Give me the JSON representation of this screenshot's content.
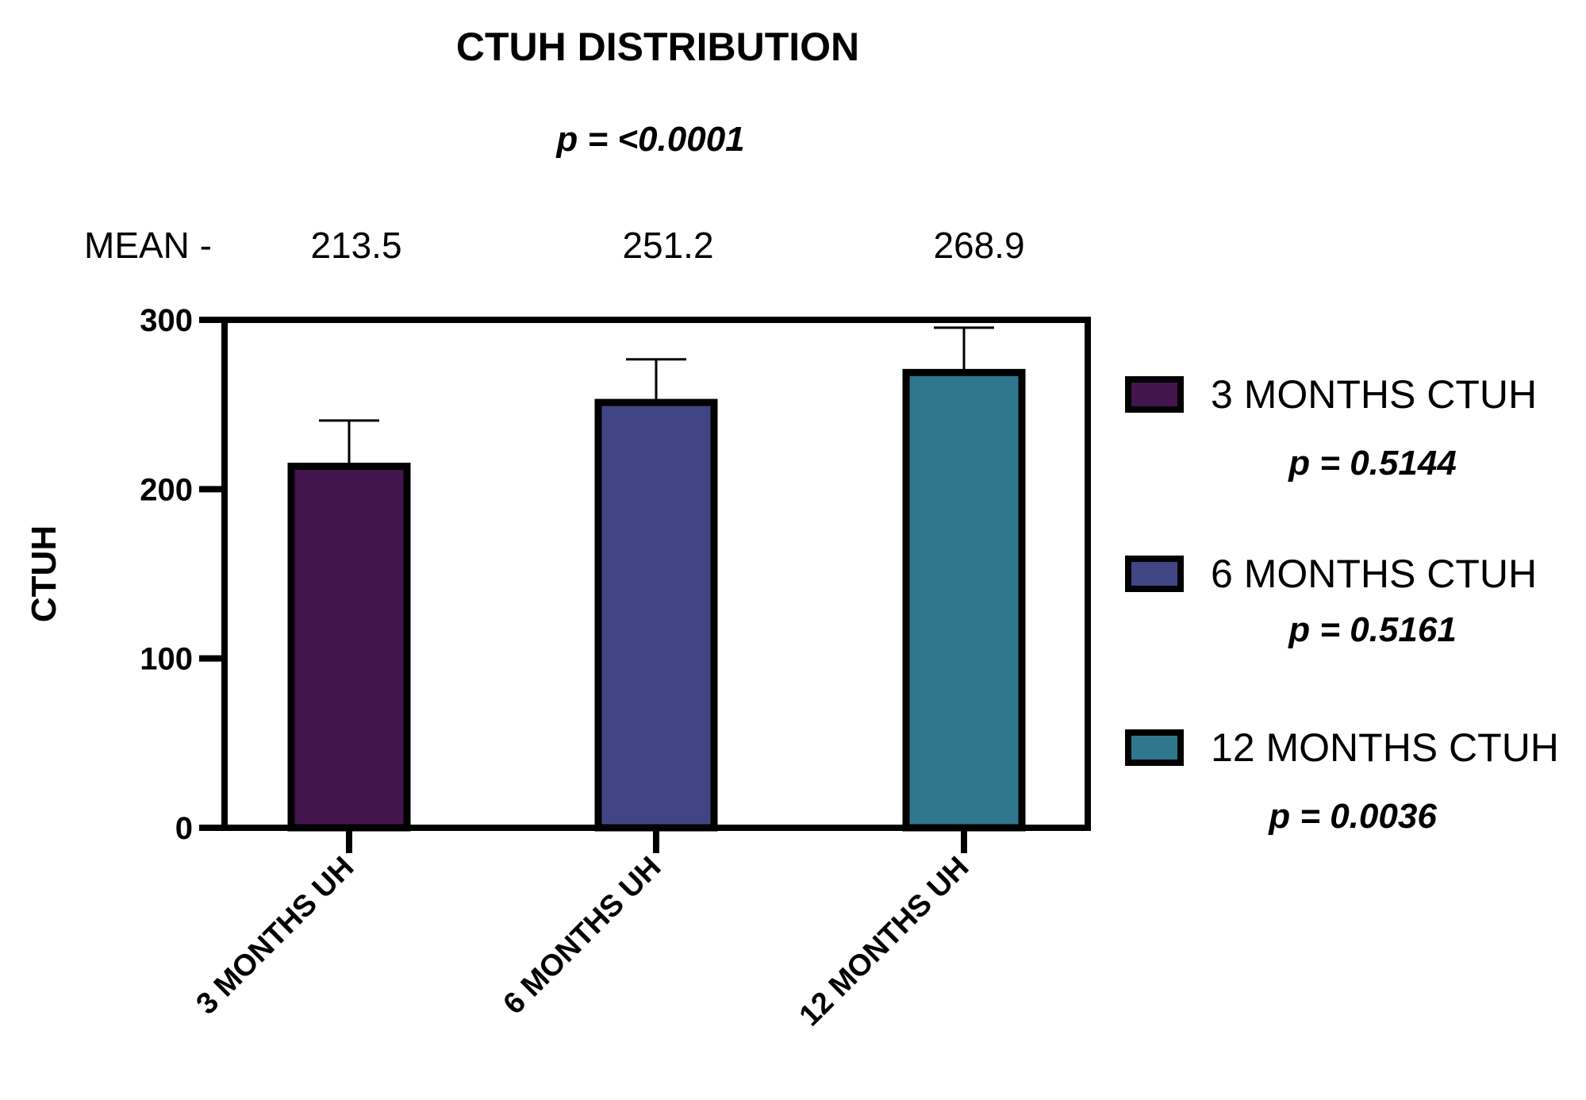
{
  "chart_data": {
    "type": "bar",
    "title": "CTUH DISTRIBUTION",
    "subtitle": "p = <0.0001",
    "mean_prefix": "MEAN -",
    "mean_labels": [
      "213.5",
      "251.2",
      "268.9"
    ],
    "categories": [
      "3 MONTHS UH",
      "6 MONTHS UH",
      "12 MONTHS UH"
    ],
    "values": [
      213.5,
      251.2,
      268.9
    ],
    "error_upper": [
      27,
      25.5,
      26.5
    ],
    "ylabel": "CTUH",
    "xlabel": "",
    "ylim": [
      0,
      300
    ],
    "yticks": [
      "0",
      "100",
      "200",
      "300"
    ],
    "grid": false,
    "legend_placement": "right",
    "legend": [
      {
        "label": "3 MONTHS CTUH",
        "p": "p = 0.5144",
        "color": "#43154d"
      },
      {
        "label": "6 MONTHS CTUH",
        "p": "p = 0.5161",
        "color": "#414584"
      },
      {
        "label": "12 MONTHS CTUH",
        "p": "p = 0.0036",
        "color": "#2f778c"
      }
    ]
  }
}
